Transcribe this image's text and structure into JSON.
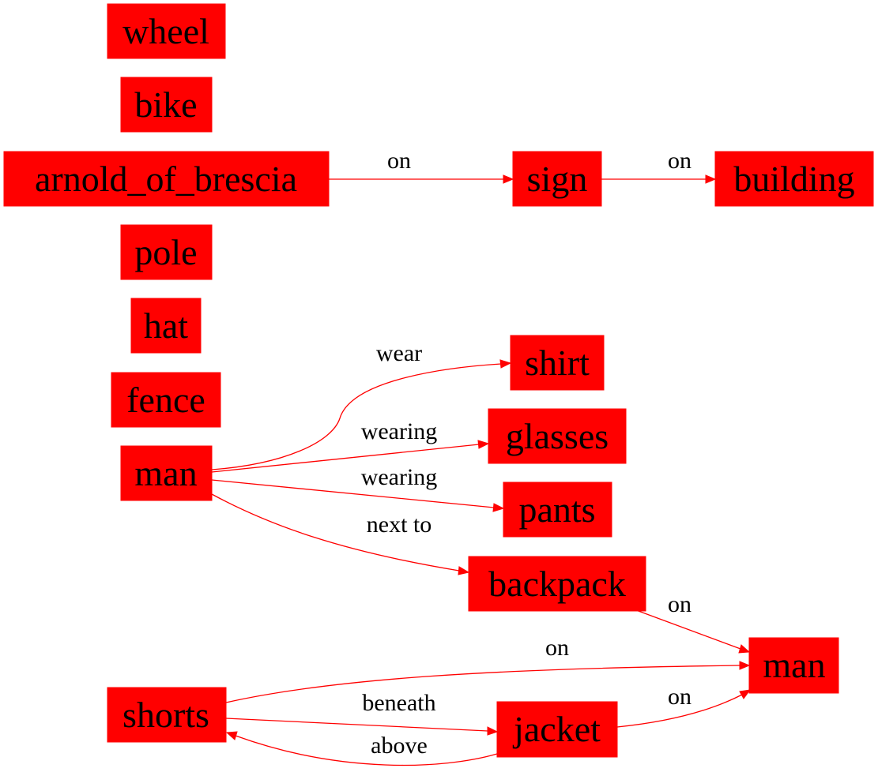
{
  "diagram": {
    "type": "scene-graph",
    "colors": {
      "node_fill": "#ff0000",
      "edge": "#ff0000",
      "text": "#000000",
      "background": "#ffffff"
    },
    "nodes": {
      "wheel": "wheel",
      "bike": "bike",
      "arnold": "arnold_of_brescia",
      "sign": "sign",
      "building": "building",
      "pole": "pole",
      "hat": "hat",
      "fence": "fence",
      "man1": "man",
      "shirt": "shirt",
      "glasses": "glasses",
      "pants": "pants",
      "backpack": "backpack",
      "man2": "man",
      "shorts": "shorts",
      "jacket": "jacket"
    },
    "edges": [
      {
        "from": "arnold_of_brescia",
        "to": "sign",
        "label": "on"
      },
      {
        "from": "sign",
        "to": "building",
        "label": "on"
      },
      {
        "from": "man",
        "to": "shirt",
        "label": "wear"
      },
      {
        "from": "man",
        "to": "glasses",
        "label": "wearing"
      },
      {
        "from": "man",
        "to": "pants",
        "label": "wearing"
      },
      {
        "from": "man",
        "to": "backpack",
        "label": "next to"
      },
      {
        "from": "backpack",
        "to": "man",
        "label": "on"
      },
      {
        "from": "shorts",
        "to": "man",
        "label": "on"
      },
      {
        "from": "shorts",
        "to": "jacket",
        "label": "beneath"
      },
      {
        "from": "jacket",
        "to": "man",
        "label": "on"
      },
      {
        "from": "jacket",
        "to": "shorts",
        "label": "above"
      }
    ]
  }
}
